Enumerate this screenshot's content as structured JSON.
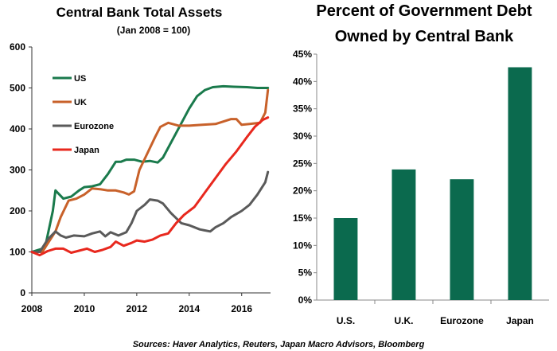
{
  "source_note": "Sources: Haver Analytics, Reuters, Japan Macro Advisors, Bloomberg",
  "chart_data": [
    {
      "type": "line",
      "title": "Central Bank Total Assets",
      "subtitle": "(Jan 2008 = 100)",
      "xlabel": "",
      "ylabel": "",
      "xlim": [
        2008,
        2017.1
      ],
      "ylim": [
        0,
        600
      ],
      "xticks": [
        "2008",
        "2010",
        "2012",
        "2014",
        "2016"
      ],
      "yticks": [
        "0",
        "100",
        "200",
        "300",
        "400",
        "500",
        "600"
      ],
      "legend_position": "top-left",
      "grid": false,
      "series": [
        {
          "name": "US",
          "color": "#1a7a4c",
          "x": [
            2008,
            2008.5,
            2008.8,
            2008.9,
            2009.2,
            2009.5,
            2009.8,
            2010.0,
            2010.3,
            2010.6,
            2010.9,
            2011.2,
            2011.4,
            2011.6,
            2011.9,
            2012.2,
            2012.5,
            2012.8,
            2013.0,
            2013.5,
            2014.0,
            2014.3,
            2014.6,
            2014.9,
            2015.3,
            2015.7,
            2016.2,
            2016.6,
            2017.0
          ],
          "y": [
            100,
            110,
            200,
            250,
            230,
            235,
            250,
            258,
            260,
            265,
            290,
            320,
            320,
            325,
            325,
            320,
            322,
            318,
            330,
            390,
            450,
            480,
            495,
            502,
            504,
            503,
            502,
            500,
            500
          ]
        },
        {
          "name": "UK",
          "color": "#c8612a",
          "x": [
            2008,
            2008.4,
            2008.7,
            2008.9,
            2009.1,
            2009.4,
            2009.7,
            2010.0,
            2010.3,
            2010.6,
            2010.9,
            2011.2,
            2011.5,
            2011.7,
            2011.9,
            2012.1,
            2012.4,
            2012.7,
            2012.9,
            2013.2,
            2013.6,
            2014.0,
            2014.5,
            2015.0,
            2015.3,
            2015.6,
            2015.8,
            2016.0,
            2016.3,
            2016.7,
            2016.9,
            2017.0
          ],
          "y": [
            100,
            100,
            130,
            150,
            185,
            225,
            230,
            240,
            255,
            253,
            250,
            250,
            245,
            240,
            248,
            300,
            340,
            380,
            405,
            415,
            408,
            408,
            410,
            412,
            418,
            424,
            424,
            410,
            412,
            415,
            440,
            495
          ]
        },
        {
          "name": "Eurozone",
          "color": "#5a5a5a",
          "x": [
            2008,
            2008.3,
            2008.6,
            2008.9,
            2009.1,
            2009.3,
            2009.6,
            2010.0,
            2010.3,
            2010.6,
            2010.8,
            2011.0,
            2011.3,
            2011.6,
            2011.8,
            2012.0,
            2012.3,
            2012.5,
            2012.8,
            2013.0,
            2013.3,
            2013.7,
            2014.0,
            2014.4,
            2014.8,
            2015.0,
            2015.3,
            2015.6,
            2016.0,
            2016.3,
            2016.6,
            2016.9,
            2017.0
          ],
          "y": [
            100,
            100,
            130,
            150,
            140,
            135,
            140,
            138,
            145,
            150,
            138,
            148,
            140,
            148,
            170,
            200,
            215,
            228,
            225,
            218,
            195,
            170,
            165,
            155,
            150,
            160,
            170,
            185,
            200,
            215,
            240,
            270,
            295
          ]
        },
        {
          "name": "Japan",
          "color": "#e8281e",
          "x": [
            2008,
            2008.3,
            2008.6,
            2008.9,
            2009.2,
            2009.5,
            2009.8,
            2010.1,
            2010.4,
            2010.7,
            2011.0,
            2011.2,
            2011.5,
            2011.8,
            2012.0,
            2012.3,
            2012.6,
            2012.9,
            2013.2,
            2013.5,
            2013.8,
            2014.2,
            2014.6,
            2015.0,
            2015.4,
            2015.8,
            2016.2,
            2016.5,
            2016.8,
            2017.0
          ],
          "y": [
            100,
            92,
            102,
            108,
            108,
            98,
            103,
            108,
            100,
            105,
            112,
            125,
            115,
            122,
            128,
            125,
            130,
            140,
            145,
            170,
            190,
            210,
            245,
            280,
            315,
            345,
            380,
            405,
            422,
            428
          ]
        }
      ]
    },
    {
      "type": "bar",
      "title": "Percent of Government Debt",
      "subtitle": "Owned by Central Bank",
      "xlabel": "",
      "ylabel": "",
      "categories": [
        "U.S.",
        "U.K.",
        "Eurozone",
        "Japan"
      ],
      "values": [
        15.0,
        23.9,
        22.1,
        42.6
      ],
      "ylim": [
        0,
        45
      ],
      "yticks": [
        "0%",
        "5%",
        "10%",
        "15%",
        "20%",
        "25%",
        "30%",
        "35%",
        "40%",
        "45%"
      ],
      "bar_color": "#0b6a4e",
      "grid": false
    }
  ]
}
